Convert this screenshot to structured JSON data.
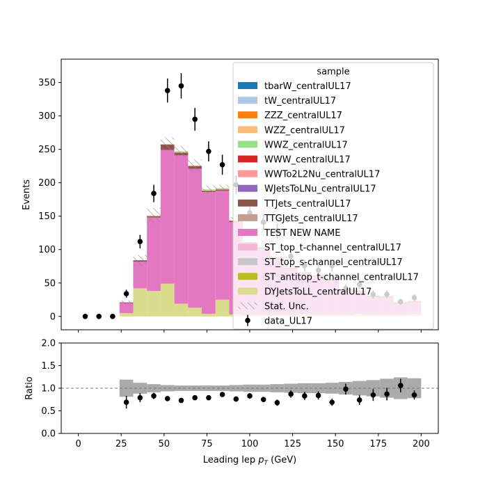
{
  "chart_data": [
    {
      "type": "stacked-histogram",
      "panel": "main",
      "ylabel": "Events",
      "xlim": [
        -10,
        210
      ],
      "ylim": [
        -20,
        385
      ],
      "yticks": [
        0,
        50,
        100,
        150,
        200,
        250,
        300,
        350
      ],
      "bin_edges": [
        0,
        8,
        16,
        24,
        32,
        40,
        48,
        56,
        64,
        72,
        80,
        88,
        96,
        104,
        112,
        120,
        128,
        136,
        144,
        152,
        160,
        168,
        176,
        184,
        192,
        200
      ],
      "series": [
        {
          "name": "DYJetsToLL_centralUL17",
          "color": "#dbdb8d",
          "values": [
            0,
            0,
            0,
            5,
            42,
            38,
            49,
            19,
            13,
            4,
            25,
            3,
            2,
            2,
            2,
            2,
            3,
            2,
            2,
            2,
            3,
            2,
            2,
            2,
            3
          ]
        },
        {
          "name": "TEST NEW NAME",
          "color": "#e377c2",
          "values": [
            0,
            0,
            0,
            15,
            40,
            110,
            200,
            222,
            208,
            182,
            163,
            138,
            108,
            100,
            85,
            70,
            62,
            58,
            52,
            38,
            34,
            28,
            27,
            18,
            19
          ]
        },
        {
          "name": "TTJets_centralUL17",
          "color": "#8c564b",
          "values": [
            0,
            0,
            0,
            1,
            2,
            2,
            8,
            4,
            4,
            2,
            2,
            2,
            1,
            1,
            1,
            1,
            1,
            1,
            1,
            1,
            1,
            1,
            1,
            1,
            1
          ]
        },
        {
          "name": "WZZ_centralUL17",
          "color": "#ffbb78",
          "values": [
            0,
            0,
            0,
            0,
            0,
            1,
            1,
            1,
            1,
            1,
            1,
            1,
            0,
            0,
            0,
            0,
            0,
            0,
            0,
            0,
            0,
            0,
            0,
            0,
            0
          ]
        },
        {
          "name": "WWZ_centralUL17",
          "color": "#98df8a",
          "values": [
            0,
            0,
            0,
            0,
            0,
            0,
            0,
            1,
            0,
            1,
            1,
            0,
            0,
            0,
            0,
            0,
            0,
            0,
            0,
            0,
            0,
            0,
            0,
            0,
            0
          ]
        }
      ],
      "stat_unc": [
        0,
        0,
        0,
        3,
        8,
        12,
        10,
        8,
        9,
        6,
        5,
        5,
        4,
        4,
        4,
        3,
        3,
        3,
        3,
        3,
        3,
        3,
        3,
        3,
        3
      ],
      "data": {
        "name": "data_UL17",
        "x": [
          4,
          12,
          20,
          28,
          36,
          44,
          52,
          60,
          68,
          76,
          84,
          92,
          100,
          108,
          116,
          124,
          132,
          140,
          148,
          156,
          164,
          172,
          180,
          188,
          196
        ],
        "y": [
          0,
          0,
          0,
          34,
          112,
          184,
          338,
          345,
          295,
          247,
          227,
          197,
          155,
          141,
          128,
          90,
          76,
          69,
          76,
          42,
          48,
          33,
          33,
          22,
          28
        ],
        "err": [
          0,
          0,
          0,
          6,
          10,
          13,
          18,
          19,
          17,
          15,
          15,
          14,
          12,
          12,
          11,
          9,
          9,
          8,
          9,
          6,
          7,
          6,
          6,
          5,
          5
        ]
      },
      "legend": {
        "title": "sample",
        "placement": "upper right",
        "entries": [
          {
            "label": "tbarW_centralUL17",
            "color": "#1f77b4",
            "kind": "patch"
          },
          {
            "label": "tW_centralUL17",
            "color": "#aec7e8",
            "kind": "patch"
          },
          {
            "label": "ZZZ_centralUL17",
            "color": "#ff7f0e",
            "kind": "patch"
          },
          {
            "label": "WZZ_centralUL17",
            "color": "#ffbb78",
            "kind": "patch"
          },
          {
            "label": "WWZ_centralUL17",
            "color": "#98df8a",
            "kind": "patch"
          },
          {
            "label": "WWW_centralUL17",
            "color": "#d62728",
            "kind": "patch"
          },
          {
            "label": "WWTo2L2Nu_centralUL17",
            "color": "#ff9896",
            "kind": "patch"
          },
          {
            "label": "WJetsToLNu_centralUL17",
            "color": "#9467bd",
            "kind": "patch"
          },
          {
            "label": "TTJets_centralUL17",
            "color": "#8c564b",
            "kind": "patch"
          },
          {
            "label": "TTGJets_centralUL17",
            "color": "#c49c94",
            "kind": "patch"
          },
          {
            "label": "TEST NEW NAME",
            "color": "#e377c2",
            "kind": "patch"
          },
          {
            "label": "ST_top_t-channel_centralUL17",
            "color": "#f7b6d2",
            "kind": "patch"
          },
          {
            "label": "ST_top_s-channel_centralUL17",
            "color": "#c7c7c7",
            "kind": "patch"
          },
          {
            "label": "ST_antitop_t-channel_centralUL17",
            "color": "#bcbd22",
            "kind": "patch"
          },
          {
            "label": "DYJetsToLL_centralUL17",
            "color": "#dbdb8d",
            "kind": "patch"
          },
          {
            "label": "Stat. Unc.",
            "color": "#888888",
            "kind": "hatch"
          },
          {
            "label": "data_UL17",
            "color": "#000000",
            "kind": "errorbar"
          }
        ]
      }
    },
    {
      "type": "ratio",
      "panel": "ratio",
      "ylabel": "Ratio",
      "xlabel_prefix": "Leading lep ",
      "xlabel_symbol": "p",
      "xlabel_sub": "T",
      "xlabel_suffix": " (GeV)",
      "xlim": [
        -10,
        210
      ],
      "ylim": [
        0.0,
        2.0
      ],
      "xticks": [
        0,
        25,
        50,
        75,
        100,
        125,
        150,
        175,
        200
      ],
      "yticks": [
        0.0,
        0.5,
        1.0,
        1.5,
        2.0
      ],
      "reference_line": 1.0,
      "unc_band": [
        0,
        0,
        0,
        0.19,
        0.12,
        0.09,
        0.07,
        0.06,
        0.06,
        0.06,
        0.06,
        0.07,
        0.08,
        0.08,
        0.09,
        0.1,
        0.11,
        0.11,
        0.12,
        0.14,
        0.16,
        0.18,
        0.21,
        0.24,
        0.22
      ],
      "points": {
        "x": [
          28,
          36,
          44,
          52,
          60,
          68,
          76,
          84,
          92,
          100,
          108,
          116,
          124,
          132,
          140,
          148,
          156,
          164,
          172,
          180,
          188,
          196
        ],
        "y": [
          0.69,
          0.79,
          0.83,
          0.77,
          0.73,
          0.79,
          0.79,
          0.86,
          0.76,
          0.83,
          0.75,
          0.68,
          0.87,
          0.83,
          0.84,
          0.69,
          0.98,
          0.74,
          0.85,
          0.87,
          1.06,
          0.85
        ],
        "err": [
          0.14,
          0.1,
          0.07,
          0.05,
          0.05,
          0.05,
          0.05,
          0.05,
          0.06,
          0.06,
          0.06,
          0.07,
          0.08,
          0.09,
          0.09,
          0.08,
          0.12,
          0.11,
          0.13,
          0.14,
          0.15,
          0.1
        ]
      }
    }
  ],
  "colors": {
    "unc_band": "#aaaaaa",
    "data_marker": "#000000",
    "hatch": "#888888"
  }
}
